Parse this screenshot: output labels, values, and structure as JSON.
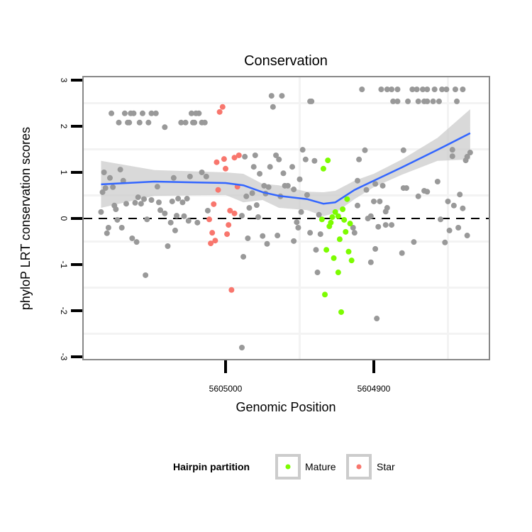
{
  "chart_data": {
    "type": "scatter",
    "title": "Conservation",
    "xlabel": "Genomic Position",
    "ylabel": "phyloP LRT conservation scores",
    "x_reversed": true,
    "xlim": [
      5605096,
      5604822
    ],
    "ylim": [
      -3.1,
      3.1
    ],
    "x_ticks": [
      5605000,
      5604900
    ],
    "x_tick_labels": [
      "5605000",
      "5604900"
    ],
    "y_ticks": [
      3,
      2,
      1,
      0,
      -1,
      -2,
      -3
    ],
    "y_tick_labels": [
      "3",
      "2",
      "1",
      "0",
      "-1",
      "-2",
      "-3"
    ],
    "reference_line": {
      "y": 0,
      "style": "dashed"
    },
    "legend": {
      "title": "Hairpin partition",
      "placement": "bottom",
      "entries": [
        {
          "label": "Mature",
          "color": "#7CFC00"
        },
        {
          "label": "Star",
          "color": "#F8766D"
        }
      ]
    },
    "colors": {
      "other": "#999999",
      "mature": "#7CFC00",
      "star": "#F8766D",
      "smooth": "#3366FF",
      "band": "#CCCCCC"
    },
    "points": {
      "other": [
        [
          5605077,
          2.28
        ],
        [
          5605068,
          2.28
        ],
        [
          5605064,
          2.28
        ],
        [
          5605062,
          2.28
        ],
        [
          5605056,
          2.28
        ],
        [
          5605050,
          2.28
        ],
        [
          5605047,
          2.28
        ],
        [
          5605023,
          2.28
        ],
        [
          5605020,
          2.28
        ],
        [
          5605018,
          2.28
        ],
        [
          5605072,
          2.08
        ],
        [
          5605066,
          2.08
        ],
        [
          5605065,
          2.08
        ],
        [
          5605058,
          2.08
        ],
        [
          5605052,
          2.08
        ],
        [
          5605030,
          2.08
        ],
        [
          5605027,
          2.08
        ],
        [
          5605022,
          2.08
        ],
        [
          5605021,
          2.08
        ],
        [
          5605016,
          2.08
        ],
        [
          5605014,
          2.08
        ],
        [
          5605041,
          1.98
        ],
        [
          5604969,
          2.66
        ],
        [
          5604962,
          2.66
        ],
        [
          5604968,
          2.42
        ],
        [
          5604908,
          2.8
        ],
        [
          5604895,
          2.8
        ],
        [
          5604891,
          2.8
        ],
        [
          5604888,
          2.8
        ],
        [
          5604884,
          2.8
        ],
        [
          5604874,
          2.8
        ],
        [
          5604871,
          2.8
        ],
        [
          5604867,
          2.8
        ],
        [
          5604864,
          2.8
        ],
        [
          5604859,
          2.8
        ],
        [
          5604854,
          2.8
        ],
        [
          5604851,
          2.8
        ],
        [
          5604845,
          2.8
        ],
        [
          5604840,
          2.8
        ],
        [
          5604943,
          2.54
        ],
        [
          5604942,
          2.54
        ],
        [
          5604887,
          2.54
        ],
        [
          5604884,
          2.54
        ],
        [
          5604877,
          2.54
        ],
        [
          5604870,
          2.54
        ],
        [
          5604866,
          2.54
        ],
        [
          5604864,
          2.54
        ],
        [
          5604860,
          2.54
        ],
        [
          5604856,
          2.54
        ],
        [
          5604844,
          2.54
        ],
        [
          5605082,
          1.0
        ],
        [
          5605078,
          0.88
        ],
        [
          5605071,
          1.06
        ],
        [
          5605069,
          0.82
        ],
        [
          5605081,
          0.66
        ],
        [
          5605083,
          0.57
        ],
        [
          5605076,
          0.68
        ],
        [
          5605084,
          0.14
        ],
        [
          5605075,
          0.28
        ],
        [
          5605074,
          0.2
        ],
        [
          5605073,
          -0.03
        ],
        [
          5605079,
          -0.2
        ],
        [
          5605080,
          -0.32
        ],
        [
          5605070,
          -0.2
        ],
        [
          5605067,
          0.32
        ],
        [
          5605063,
          -0.43
        ],
        [
          5605060,
          -0.51
        ],
        [
          5605054,
          -1.23
        ],
        [
          5605061,
          0.34
        ],
        [
          5605059,
          0.46
        ],
        [
          5605057,
          0.32
        ],
        [
          5605055,
          0.42
        ],
        [
          5605050,
          0.4
        ],
        [
          5605045,
          0.35
        ],
        [
          5605046,
          0.69
        ],
        [
          5605053,
          -0.02
        ],
        [
          5605044,
          0.18
        ],
        [
          5605041,
          0.11
        ],
        [
          5605039,
          -0.6
        ],
        [
          5605037,
          -0.09
        ],
        [
          5605034,
          -0.26
        ],
        [
          5605033,
          0.06
        ],
        [
          5605036,
          0.37
        ],
        [
          5605035,
          0.88
        ],
        [
          5605032,
          0.43
        ],
        [
          5605026,
          0.43
        ],
        [
          5605029,
          0.35
        ],
        [
          5605028,
          0.05
        ],
        [
          5605025,
          -0.05
        ],
        [
          5605019,
          -0.09
        ],
        [
          5605024,
          0.91
        ],
        [
          5605016,
          1.0
        ],
        [
          5605013,
          0.91
        ],
        [
          5605012,
          0.17
        ],
        [
          5604989,
          0.06
        ],
        [
          5604987,
          1.34
        ],
        [
          5604980,
          1.37
        ],
        [
          5604981,
          1.12
        ],
        [
          5604977,
          0.97
        ],
        [
          5604986,
          0.48
        ],
        [
          5604982,
          0.55
        ],
        [
          5604984,
          0.23
        ],
        [
          5604979,
          0.29
        ],
        [
          5604978,
          0.03
        ],
        [
          5604985,
          -0.43
        ],
        [
          5604975,
          -0.38
        ],
        [
          5604972,
          -0.55
        ],
        [
          5604965,
          -0.37
        ],
        [
          5604988,
          -0.83
        ],
        [
          5604989,
          -2.8
        ],
        [
          5604966,
          1.37
        ],
        [
          5604964,
          1.28
        ],
        [
          5604970,
          1.12
        ],
        [
          5604961,
          0.98
        ],
        [
          5604974,
          0.71
        ],
        [
          5604971,
          0.68
        ],
        [
          5604960,
          0.71
        ],
        [
          5604963,
          0.48
        ],
        [
          5604973,
          0.54
        ],
        [
          5604948,
          1.49
        ],
        [
          5604946,
          1.28
        ],
        [
          5604940,
          1.25
        ],
        [
          5604955,
          1.12
        ],
        [
          5604950,
          0.85
        ],
        [
          5604958,
          0.71
        ],
        [
          5604954,
          0.63
        ],
        [
          5604945,
          0.51
        ],
        [
          5604949,
          0.14
        ],
        [
          5604952,
          -0.08
        ],
        [
          5604951,
          -0.2
        ],
        [
          5604954,
          -0.49
        ],
        [
          5604943,
          -0.31
        ],
        [
          5604936,
          -0.34
        ],
        [
          5604937,
          0.08
        ],
        [
          5604939,
          -0.68
        ],
        [
          5604938,
          -1.17
        ],
        [
          5604906,
          1.48
        ],
        [
          5604910,
          1.28
        ],
        [
          5604911,
          0.82
        ],
        [
          5604905,
          0.62
        ],
        [
          5604899,
          0.75
        ],
        [
          5604894,
          0.71
        ],
        [
          5604900,
          0.37
        ],
        [
          5604896,
          0.37
        ],
        [
          5604911,
          0.28
        ],
        [
          5604891,
          0.23
        ],
        [
          5604892,
          0.15
        ],
        [
          5604902,
          0.05
        ],
        [
          5604904,
          0.0
        ],
        [
          5604914,
          -0.2
        ],
        [
          5604913,
          -0.31
        ],
        [
          5604897,
          -0.18
        ],
        [
          5604892,
          -0.14
        ],
        [
          5604888,
          -0.14
        ],
        [
          5604899,
          -0.66
        ],
        [
          5604902,
          -0.95
        ],
        [
          5604898,
          -2.17
        ],
        [
          5604880,
          1.48
        ],
        [
          5604880,
          0.66
        ],
        [
          5604878,
          0.66
        ],
        [
          5604881,
          -0.75
        ],
        [
          5604873,
          -0.51
        ],
        [
          5604870,
          0.48
        ],
        [
          5604866,
          0.6
        ],
        [
          5604864,
          0.58
        ],
        [
          5604857,
          0.8
        ],
        [
          5604855,
          -0.02
        ],
        [
          5604850,
          0.37
        ],
        [
          5604846,
          0.28
        ],
        [
          5604842,
          0.52
        ],
        [
          5604840,
          0.22
        ],
        [
          5604849,
          -0.26
        ],
        [
          5604843,
          -0.2
        ],
        [
          5604852,
          -0.52
        ],
        [
          5604837,
          -0.37
        ],
        [
          5604847,
          1.49
        ],
        [
          5604847,
          1.35
        ],
        [
          5604838,
          1.26
        ],
        [
          5604835,
          1.43
        ],
        [
          5604837,
          1.34
        ]
      ],
      "mature": [
        [
          5604931,
          1.26
        ],
        [
          5604934,
          1.08
        ],
        [
          5604918,
          0.42
        ],
        [
          5604921,
          0.2
        ],
        [
          5604926,
          0.14
        ],
        [
          5604924,
          0.05
        ],
        [
          5604928,
          0.03
        ],
        [
          5604935,
          -0.02
        ],
        [
          5604929,
          -0.09
        ],
        [
          5604930,
          -0.17
        ],
        [
          5604920,
          -0.03
        ],
        [
          5604916,
          -0.11
        ],
        [
          5604919,
          -0.29
        ],
        [
          5604923,
          -0.45
        ],
        [
          5604932,
          -0.68
        ],
        [
          5604917,
          -0.72
        ],
        [
          5604927,
          -0.86
        ],
        [
          5604915,
          -0.91
        ],
        [
          5604924,
          -1.17
        ],
        [
          5604933,
          -1.65
        ],
        [
          5604922,
          -2.03
        ]
      ],
      "star": [
        [
          5605002,
          2.42
        ],
        [
          5605004,
          2.31
        ],
        [
          5605006,
          1.22
        ],
        [
          5605001,
          1.29
        ],
        [
          5605000,
          1.08
        ],
        [
          5604994,
          1.32
        ],
        [
          5604991,
          1.37
        ],
        [
          5605005,
          0.62
        ],
        [
          5604992,
          0.69
        ],
        [
          5605008,
          0.31
        ],
        [
          5605011,
          -0.02
        ],
        [
          5605009,
          -0.31
        ],
        [
          5605010,
          -0.54
        ],
        [
          5605007,
          -0.48
        ],
        [
          5604998,
          -0.14
        ],
        [
          5604997,
          0.17
        ],
        [
          5604994,
          0.11
        ],
        [
          5604999,
          -0.34
        ],
        [
          5604996,
          -1.55
        ]
      ]
    },
    "smooth": {
      "x": [
        5605084,
        5605048,
        5605000,
        5604988,
        5604975,
        5604964,
        5604945,
        5604934,
        5604926,
        5604913,
        5604900,
        5604881,
        5604857,
        5604835
      ],
      "y": [
        0.74,
        0.8,
        0.77,
        0.72,
        0.57,
        0.49,
        0.42,
        0.32,
        0.35,
        0.62,
        0.82,
        1.11,
        1.49,
        1.85
      ],
      "lower": [
        0.23,
        0.49,
        0.51,
        0.35,
        0.4,
        0.23,
        0.18,
        0.05,
        0.12,
        0.42,
        0.68,
        0.95,
        1.25,
        1.28
      ],
      "upper": [
        1.25,
        1.05,
        1.0,
        0.97,
        0.75,
        0.72,
        0.58,
        0.57,
        0.6,
        0.82,
        0.97,
        1.28,
        1.75,
        2.37
      ]
    }
  }
}
